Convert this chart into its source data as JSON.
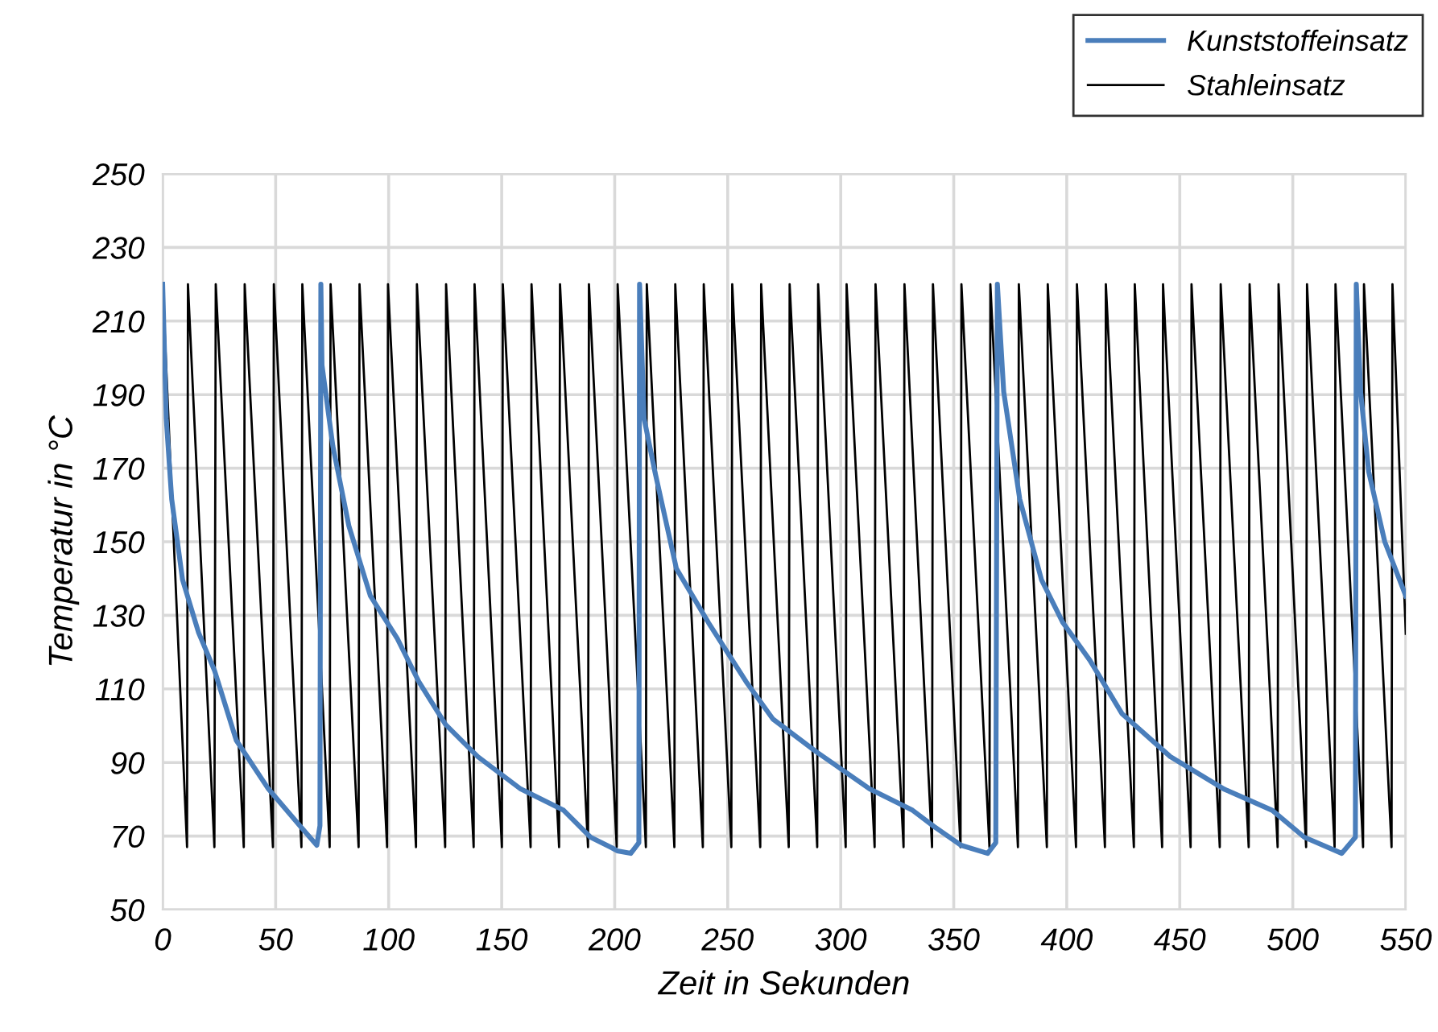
{
  "chart_data": {
    "type": "line",
    "xlabel": "Zeit in Sekunden",
    "ylabel": "Temperatur in °C",
    "xlim": [
      0,
      550
    ],
    "ylim": [
      50,
      250
    ],
    "xticks": [
      0,
      50,
      100,
      150,
      200,
      250,
      300,
      350,
      400,
      450,
      500,
      550
    ],
    "yticks": [
      50,
      70,
      90,
      110,
      130,
      150,
      170,
      190,
      210,
      230,
      250
    ],
    "grid": true,
    "legend": "top right",
    "marker": "none",
    "line_style": "solid",
    "series": [
      {
        "name": "Kunststoffeinsatz",
        "color": "#4a7ebb",
        "x": [
          0,
          1.6,
          4.0,
          8.8,
          15.9,
          23.0,
          32.6,
          46.8,
          61,
          68.2,
          69.6,
          70,
          70.5,
          75.3,
          82.4,
          91.9,
          103.8,
          113.3,
          125.2,
          139.4,
          158.4,
          177.4,
          189.3,
          198.8,
          201.1,
          207.1,
          210.7,
          211,
          213,
          217.8,
          227.3,
          241.5,
          258.1,
          270,
          289,
          312.8,
          331.8,
          341.3,
          353.2,
          365,
          368.6,
          369.3,
          372.1,
          379.2,
          388.8,
          398.3,
          410.2,
          424.4,
          445.8,
          469.5,
          490.9,
          505.1,
          521.7,
          527.7,
          528.1,
          530,
          533.6,
          540.7,
          550
        ],
        "values": [
          220,
          183.5,
          161.6,
          139.7,
          125.3,
          114.9,
          96,
          82.8,
          72.6,
          67.5,
          72.8,
          220,
          198,
          176,
          154.3,
          135.3,
          123.7,
          112,
          100.3,
          91.6,
          82.8,
          77,
          69.7,
          66.8,
          66,
          65.3,
          68.2,
          220,
          183.5,
          169,
          142.7,
          128,
          112,
          101.8,
          93,
          82.8,
          77,
          72.6,
          67.5,
          65.3,
          68.2,
          220,
          190.8,
          161.6,
          139.7,
          128,
          117.8,
          103.3,
          91.6,
          82.8,
          77,
          69.7,
          65.3,
          69.7,
          220,
          190.8,
          169,
          150,
          135.3
        ]
      },
      {
        "name": "Stahleinsatz",
        "color": "#000000",
        "x": [
          0,
          10.8,
          11.2,
          22.9,
          23.5,
          35.9,
          36.3,
          48.8,
          49.2,
          61.4,
          61.8,
          73.9,
          74.3,
          86.7,
          87.1,
          99.3,
          99.7,
          112.1,
          112.5,
          125.0,
          125.4,
          137.6,
          138.0,
          150.1,
          150.5,
          162.8,
          163.2,
          175.4,
          175.8,
          188.2,
          188.6,
          200.9,
          201.3,
          213.8,
          214.2,
          226.4,
          226.8,
          239.0,
          239.4,
          251.6,
          252.0,
          264.4,
          264.8,
          277.0,
          277.4,
          289.6,
          290.0,
          302.2,
          302.6,
          315.0,
          315.4,
          327.8,
          328.2,
          340.4,
          340.8,
          353.0,
          353.4,
          365.8,
          366.2,
          378.4,
          378.8,
          391.2,
          391.6,
          404.1,
          404.5,
          416.9,
          417.3,
          429.7,
          430.1,
          442.2,
          442.6,
          454.8,
          455.2,
          467.7,
          468.1,
          480.5,
          480.9,
          493.3,
          493.7,
          505.9,
          506.3,
          518.5,
          518.9,
          531.1,
          531.5,
          543.7,
          544.1,
          550
        ],
        "values": [
          220,
          67,
          220,
          67,
          220,
          67,
          220,
          67,
          220,
          67,
          220,
          67,
          220,
          67,
          220,
          67,
          220,
          67,
          220,
          67,
          220,
          67,
          220,
          67,
          220,
          67,
          220,
          67,
          220,
          67,
          220,
          67,
          220,
          67,
          220,
          67,
          220,
          67,
          220,
          67,
          220,
          67,
          220,
          67,
          220,
          67,
          220,
          67,
          220,
          67,
          220,
          67,
          220,
          67,
          220,
          67,
          220,
          67,
          220,
          67,
          220,
          67,
          220,
          67,
          220,
          67,
          220,
          67,
          220,
          67,
          220,
          67,
          220,
          67,
          220,
          67,
          220,
          67,
          220,
          67,
          220,
          67,
          220,
          67,
          220,
          67,
          220,
          125
        ]
      }
    ]
  }
}
